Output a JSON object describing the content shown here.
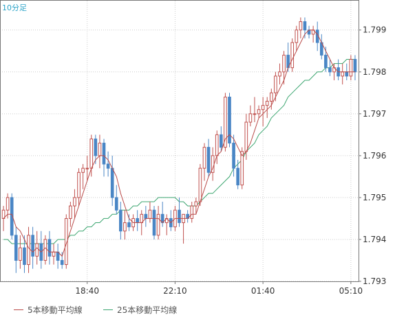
{
  "chart_data": {
    "type": "candlestick",
    "timeframe_label": "10分足",
    "ylim": [
      1.793,
      1.7997
    ],
    "y_ticks": [
      "1.799",
      "1.798",
      "1.797",
      "1.796",
      "1.795",
      "1.794",
      "1.793"
    ],
    "x_ticks": [
      "18:40",
      "22:10",
      "01:40",
      "05:10"
    ],
    "x_tick_indices": [
      20,
      41,
      62,
      83
    ],
    "series": [
      {
        "name": "5本移動平均線",
        "color": "#b94a48"
      },
      {
        "name": "25本移動平均線",
        "color": "#3aa56f"
      }
    ],
    "colors": {
      "up": "#c0504d",
      "down": "#4a86c5",
      "axis": "#777777",
      "grid": "#cccccc"
    },
    "candles": [
      [
        1.7945,
        1.7948,
        1.7942,
        1.7947
      ],
      [
        1.7947,
        1.7951,
        1.7945,
        1.795
      ],
      [
        1.795,
        1.7951,
        1.794,
        1.7941
      ],
      [
        1.7941,
        1.7943,
        1.7932,
        1.7935
      ],
      [
        1.7935,
        1.7941,
        1.7933,
        1.7938
      ],
      [
        1.7938,
        1.7941,
        1.7932,
        1.7934
      ],
      [
        1.7934,
        1.7943,
        1.7932,
        1.7941
      ],
      [
        1.7941,
        1.7943,
        1.7933,
        1.7936
      ],
      [
        1.7936,
        1.7942,
        1.7934,
        1.7939
      ],
      [
        1.7939,
        1.7942,
        1.7933,
        1.7935
      ],
      [
        1.7935,
        1.7941,
        1.7934,
        1.794
      ],
      [
        1.794,
        1.7942,
        1.7934,
        1.7936
      ],
      [
        1.7936,
        1.7939,
        1.7934,
        1.7937
      ],
      [
        1.7937,
        1.7939,
        1.7933,
        1.7935
      ],
      [
        1.7935,
        1.7937,
        1.7933,
        1.7934
      ],
      [
        1.7934,
        1.7946,
        1.7933,
        1.7945
      ],
      [
        1.7945,
        1.7949,
        1.7943,
        1.7948
      ],
      [
        1.7948,
        1.7952,
        1.7945,
        1.795
      ],
      [
        1.795,
        1.7957,
        1.7948,
        1.7956
      ],
      [
        1.7956,
        1.7958,
        1.7952,
        1.7957
      ],
      [
        1.7957,
        1.796,
        1.7954,
        1.7957
      ],
      [
        1.7957,
        1.7965,
        1.7955,
        1.7964
      ],
      [
        1.7964,
        1.7965,
        1.7958,
        1.796
      ],
      [
        1.796,
        1.7965,
        1.7957,
        1.7963
      ],
      [
        1.7963,
        1.7964,
        1.7955,
        1.7958
      ],
      [
        1.7958,
        1.7961,
        1.7955,
        1.7957
      ],
      [
        1.7957,
        1.796,
        1.7948,
        1.795
      ],
      [
        1.795,
        1.7953,
        1.7946,
        1.7947
      ],
      [
        1.7947,
        1.7949,
        1.794,
        1.7942
      ],
      [
        1.7942,
        1.7947,
        1.794,
        1.7944
      ],
      [
        1.7944,
        1.7946,
        1.7942,
        1.7943
      ],
      [
        1.7943,
        1.7946,
        1.7942,
        1.7945
      ],
      [
        1.7945,
        1.7947,
        1.7942,
        1.7944
      ],
      [
        1.7944,
        1.7947,
        1.7941,
        1.7946
      ],
      [
        1.7946,
        1.7948,
        1.7943,
        1.7945
      ],
      [
        1.7945,
        1.7949,
        1.7944,
        1.7947
      ],
      [
        1.7947,
        1.7948,
        1.794,
        1.7941
      ],
      [
        1.7941,
        1.7948,
        1.794,
        1.7946
      ],
      [
        1.7946,
        1.7949,
        1.7943,
        1.7944
      ],
      [
        1.7944,
        1.7946,
        1.7941,
        1.7945
      ],
      [
        1.7945,
        1.7947,
        1.7942,
        1.7943
      ],
      [
        1.7943,
        1.7948,
        1.7942,
        1.7947
      ],
      [
        1.7947,
        1.795,
        1.7943,
        1.7944
      ],
      [
        1.7944,
        1.7946,
        1.7939,
        1.7946
      ],
      [
        1.7946,
        1.7947,
        1.7944,
        1.7945
      ],
      [
        1.7945,
        1.7949,
        1.7944,
        1.7948
      ],
      [
        1.7948,
        1.795,
        1.7946,
        1.7949
      ],
      [
        1.7949,
        1.7958,
        1.7948,
        1.7957
      ],
      [
        1.7957,
        1.7963,
        1.7954,
        1.7962
      ],
      [
        1.7962,
        1.7964,
        1.7955,
        1.7956
      ],
      [
        1.7956,
        1.7962,
        1.7954,
        1.796
      ],
      [
        1.796,
        1.7966,
        1.7958,
        1.7965
      ],
      [
        1.7965,
        1.7967,
        1.7961,
        1.7962
      ],
      [
        1.7962,
        1.7975,
        1.7961,
        1.7974
      ],
      [
        1.7974,
        1.7975,
        1.7962,
        1.7963
      ],
      [
        1.7963,
        1.7965,
        1.7955,
        1.7957
      ],
      [
        1.7957,
        1.7959,
        1.7952,
        1.7953
      ],
      [
        1.7953,
        1.7962,
        1.7952,
        1.7961
      ],
      [
        1.7961,
        1.797,
        1.7959,
        1.7968
      ],
      [
        1.7968,
        1.7972,
        1.7967,
        1.797
      ],
      [
        1.797,
        1.7974,
        1.7968,
        1.797
      ],
      [
        1.797,
        1.7972,
        1.7969,
        1.7971
      ],
      [
        1.7971,
        1.7974,
        1.7967,
        1.7972
      ],
      [
        1.7972,
        1.7974,
        1.7969,
        1.7973
      ],
      [
        1.7973,
        1.7976,
        1.7971,
        1.7975
      ],
      [
        1.7975,
        1.798,
        1.7973,
        1.7979
      ],
      [
        1.7979,
        1.7982,
        1.7977,
        1.798
      ],
      [
        1.798,
        1.7985,
        1.7977,
        1.7984
      ],
      [
        1.7984,
        1.7987,
        1.798,
        1.7981
      ],
      [
        1.7981,
        1.7988,
        1.798,
        1.7987
      ],
      [
        1.7987,
        1.7991,
        1.7985,
        1.799
      ],
      [
        1.799,
        1.7993,
        1.7988,
        1.7992
      ],
      [
        1.7992,
        1.7993,
        1.7988,
        1.799
      ],
      [
        1.799,
        1.7991,
        1.7988,
        1.7989
      ],
      [
        1.7989,
        1.7991,
        1.7987,
        1.799
      ],
      [
        1.799,
        1.7992,
        1.7985,
        1.7987
      ],
      [
        1.7987,
        1.7989,
        1.7983,
        1.7984
      ],
      [
        1.7984,
        1.7986,
        1.798,
        1.7981
      ],
      [
        1.7981,
        1.7983,
        1.7979,
        1.798
      ],
      [
        1.798,
        1.7982,
        1.7978,
        1.7981
      ],
      [
        1.7981,
        1.7983,
        1.7978,
        1.7979
      ],
      [
        1.7979,
        1.7982,
        1.7977,
        1.798
      ],
      [
        1.798,
        1.7982,
        1.7978,
        1.7979
      ],
      [
        1.7979,
        1.7984,
        1.7978,
        1.7983
      ],
      [
        1.7983,
        1.7984,
        1.7978,
        1.798
      ]
    ],
    "ma5": [
      1.7945,
      1.7946,
      1.7946,
      1.7943,
      1.7942,
      1.794,
      1.7938,
      1.7937,
      1.7938,
      1.7937,
      1.7938,
      1.7937,
      1.7937,
      1.7937,
      1.7936,
      1.7939,
      1.7942,
      1.7945,
      1.7948,
      1.7951,
      1.7954,
      1.7957,
      1.7959,
      1.796,
      1.796,
      1.7959,
      1.7957,
      1.7955,
      1.7951,
      1.7948,
      1.7945,
      1.7944,
      1.7944,
      1.7944,
      1.7945,
      1.7945,
      1.7945,
      1.7945,
      1.7944,
      1.7945,
      1.7944,
      1.7945,
      1.7945,
      1.7945,
      1.7945,
      1.7946,
      1.7946,
      1.7949,
      1.7952,
      1.7955,
      1.7957,
      1.796,
      1.7961,
      1.7964,
      1.7965,
      1.7964,
      1.7962,
      1.796,
      1.7961,
      1.7963,
      1.7966,
      1.7969,
      1.797,
      1.7971,
      1.7972,
      1.7974,
      1.7976,
      1.7978,
      1.7981,
      1.7983,
      1.7985,
      1.7987,
      1.7989,
      1.799,
      1.799,
      1.7989,
      1.7987,
      1.7985,
      1.7983,
      1.7981,
      1.798,
      1.798,
      1.798,
      1.798,
      1.798
    ],
    "ma25": [
      1.794,
      1.794,
      1.7939,
      1.7939,
      1.7939,
      1.7939,
      1.7939,
      1.7939,
      1.7939,
      1.7939,
      1.7939,
      1.7939,
      1.7939,
      1.794,
      1.794,
      1.794,
      1.7941,
      1.7941,
      1.7942,
      1.7942,
      1.7943,
      1.7943,
      1.7944,
      1.7944,
      1.7945,
      1.7945,
      1.7946,
      1.7946,
      1.7947,
      1.7947,
      1.7947,
      1.7948,
      1.7948,
      1.7949,
      1.7949,
      1.7949,
      1.7949,
      1.795,
      1.795,
      1.795,
      1.795,
      1.795,
      1.7949,
      1.7949,
      1.7948,
      1.7948,
      1.7948,
      1.7949,
      1.795,
      1.7951,
      1.7951,
      1.7952,
      1.7953,
      1.7954,
      1.7955,
      1.7957,
      1.7958,
      1.7959,
      1.7961,
      1.7962,
      1.7963,
      1.7965,
      1.7966,
      1.7967,
      1.7969,
      1.797,
      1.7971,
      1.7972,
      1.7974,
      1.7975,
      1.7976,
      1.7977,
      1.7978,
      1.7978,
      1.7979,
      1.798,
      1.798,
      1.7981,
      1.7981,
      1.7982,
      1.7982,
      1.7982,
      1.7983,
      1.7983,
      1.7983
    ]
  }
}
